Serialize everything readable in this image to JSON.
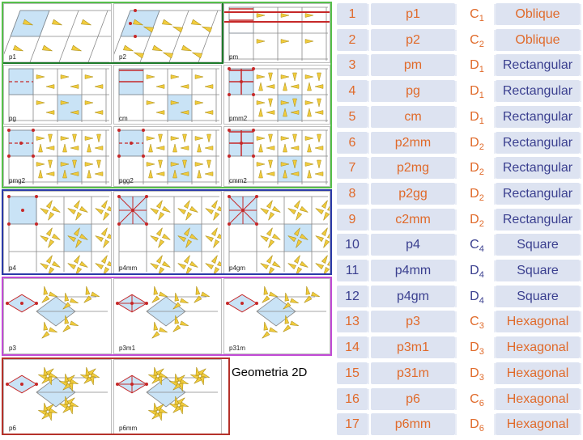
{
  "caption": "Geometria 2D",
  "groups": [
    {
      "name": "oblique",
      "color": "#2e9d3a"
    },
    {
      "name": "rectangular",
      "color": "#55c04a"
    },
    {
      "name": "square",
      "color": "#2b3aa8"
    },
    {
      "name": "hexagonal-3",
      "color": "#c24bd6"
    },
    {
      "name": "hexagonal-6",
      "color": "#c0392b"
    }
  ],
  "tiles": [
    "p1",
    "p2",
    "pm",
    "pg",
    "cm",
    "pmm2",
    "pmg2",
    "pgg2",
    "cmm2",
    "p4",
    "p4mm",
    "p4gm",
    "p3",
    "p3m1",
    "p31m",
    "p6",
    "p6mm"
  ],
  "table_rows": [
    {
      "num": "1",
      "group": "p1",
      "pg": "C",
      "sub": "1",
      "system": "Oblique",
      "color": "#e06a2a",
      "sys_color": "#e06a2a"
    },
    {
      "num": "2",
      "group": "p2",
      "pg": "C",
      "sub": "2",
      "system": "Oblique",
      "color": "#e06a2a",
      "sys_color": "#e06a2a"
    },
    {
      "num": "3",
      "group": "pm",
      "pg": "D",
      "sub": "1",
      "system": "Rectangular",
      "color": "#e06a2a",
      "sys_color": "#3a3f8f"
    },
    {
      "num": "4",
      "group": "pg",
      "pg": "D",
      "sub": "1",
      "system": "Rectangular",
      "color": "#e06a2a",
      "sys_color": "#3a3f8f"
    },
    {
      "num": "5",
      "group": "cm",
      "pg": "D",
      "sub": "1",
      "system": "Rectangular",
      "color": "#e06a2a",
      "sys_color": "#3a3f8f"
    },
    {
      "num": "6",
      "group": "p2mm",
      "pg": "D",
      "sub": "2",
      "system": "Rectangular",
      "color": "#e06a2a",
      "sys_color": "#3a3f8f"
    },
    {
      "num": "7",
      "group": "p2mg",
      "pg": "D",
      "sub": "2",
      "system": "Rectangular",
      "color": "#e06a2a",
      "sys_color": "#3a3f8f"
    },
    {
      "num": "8",
      "group": "p2gg",
      "pg": "D",
      "sub": "2",
      "system": "Rectangular",
      "color": "#e06a2a",
      "sys_color": "#3a3f8f"
    },
    {
      "num": "9",
      "group": "c2mm",
      "pg": "D",
      "sub": "2",
      "system": "Rectangular",
      "color": "#e06a2a",
      "sys_color": "#3a3f8f"
    },
    {
      "num": "10",
      "group": "p4",
      "pg": "C",
      "sub": "4",
      "system": "Square",
      "color": "#3a3f8f",
      "sys_color": "#3a3f8f"
    },
    {
      "num": "11",
      "group": "p4mm",
      "pg": "D",
      "sub": "4",
      "system": "Square",
      "color": "#3a3f8f",
      "sys_color": "#3a3f8f"
    },
    {
      "num": "12",
      "group": "p4gm",
      "pg": "D",
      "sub": "4",
      "system": "Square",
      "color": "#3a3f8f",
      "sys_color": "#3a3f8f"
    },
    {
      "num": "13",
      "group": "p3",
      "pg": "C",
      "sub": "3",
      "system": "Hexagonal",
      "color": "#e06a2a",
      "sys_color": "#e06a2a"
    },
    {
      "num": "14",
      "group": "p3m1",
      "pg": "D",
      "sub": "3",
      "system": "Hexagonal",
      "color": "#e06a2a",
      "sys_color": "#e06a2a"
    },
    {
      "num": "15",
      "group": "p31m",
      "pg": "D",
      "sub": "3",
      "system": "Hexagonal",
      "color": "#e06a2a",
      "sys_color": "#e06a2a"
    },
    {
      "num": "16",
      "group": "p6",
      "pg": "C",
      "sub": "6",
      "system": "Hexagonal",
      "color": "#e06a2a",
      "sys_color": "#e06a2a"
    },
    {
      "num": "17",
      "group": "p6mm",
      "pg": "D",
      "sub": "6",
      "system": "Hexagonal",
      "color": "#e06a2a",
      "sys_color": "#e06a2a"
    }
  ]
}
